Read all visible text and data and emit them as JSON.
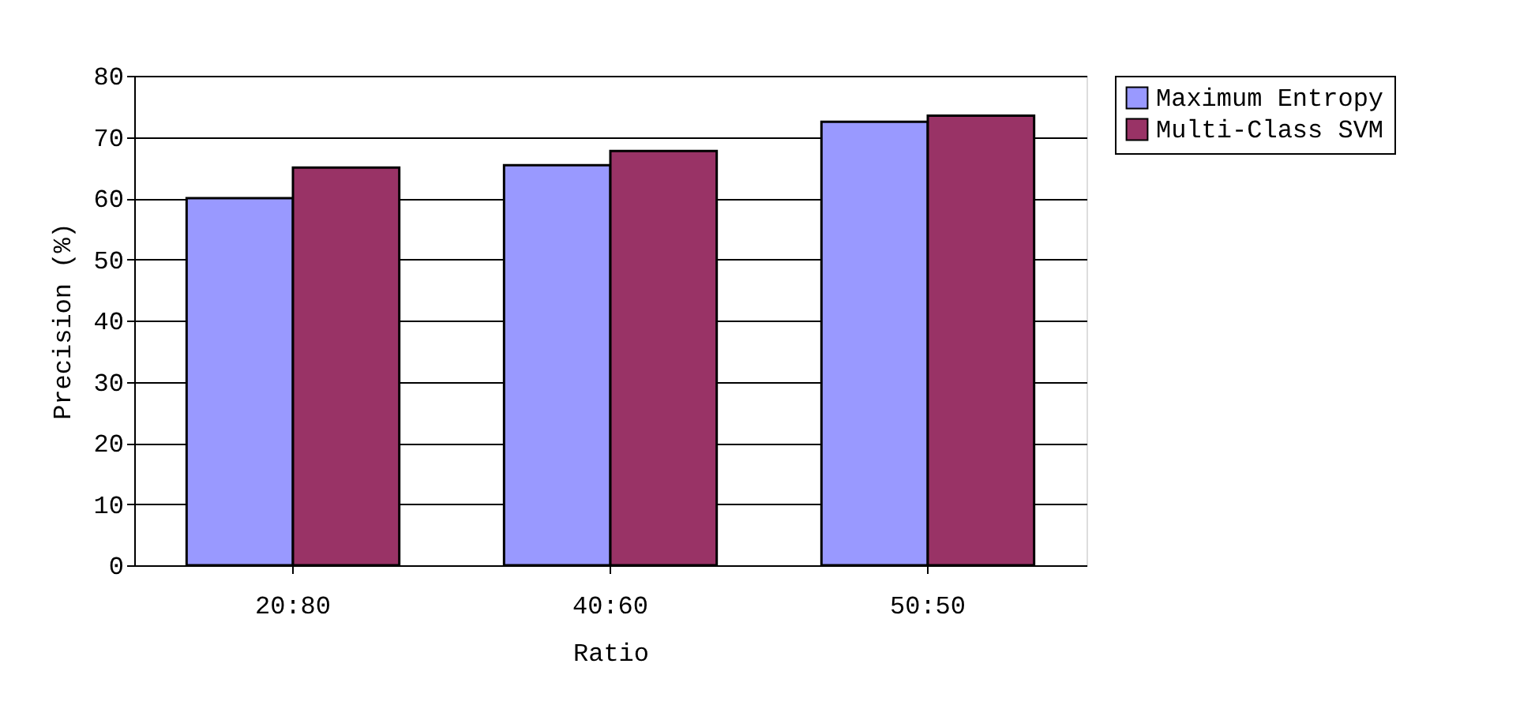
{
  "chart_data": {
    "type": "bar",
    "xlabel": "Ratio",
    "ylabel": "Precision (%)",
    "categories": [
      "20:80",
      "40:60",
      "50:50"
    ],
    "series": [
      {
        "name": "Maximum Entropy",
        "color": "#9999ff",
        "values": [
          60,
          65.4,
          72.5
        ]
      },
      {
        "name": "Multi-Class SVM",
        "color": "#993366",
        "values": [
          65,
          67.7,
          73.5
        ]
      }
    ],
    "ylim": [
      0,
      80
    ],
    "yticks": [
      0,
      10,
      20,
      30,
      40,
      50,
      60,
      70,
      80
    ],
    "grid": "y",
    "legend": "right"
  }
}
